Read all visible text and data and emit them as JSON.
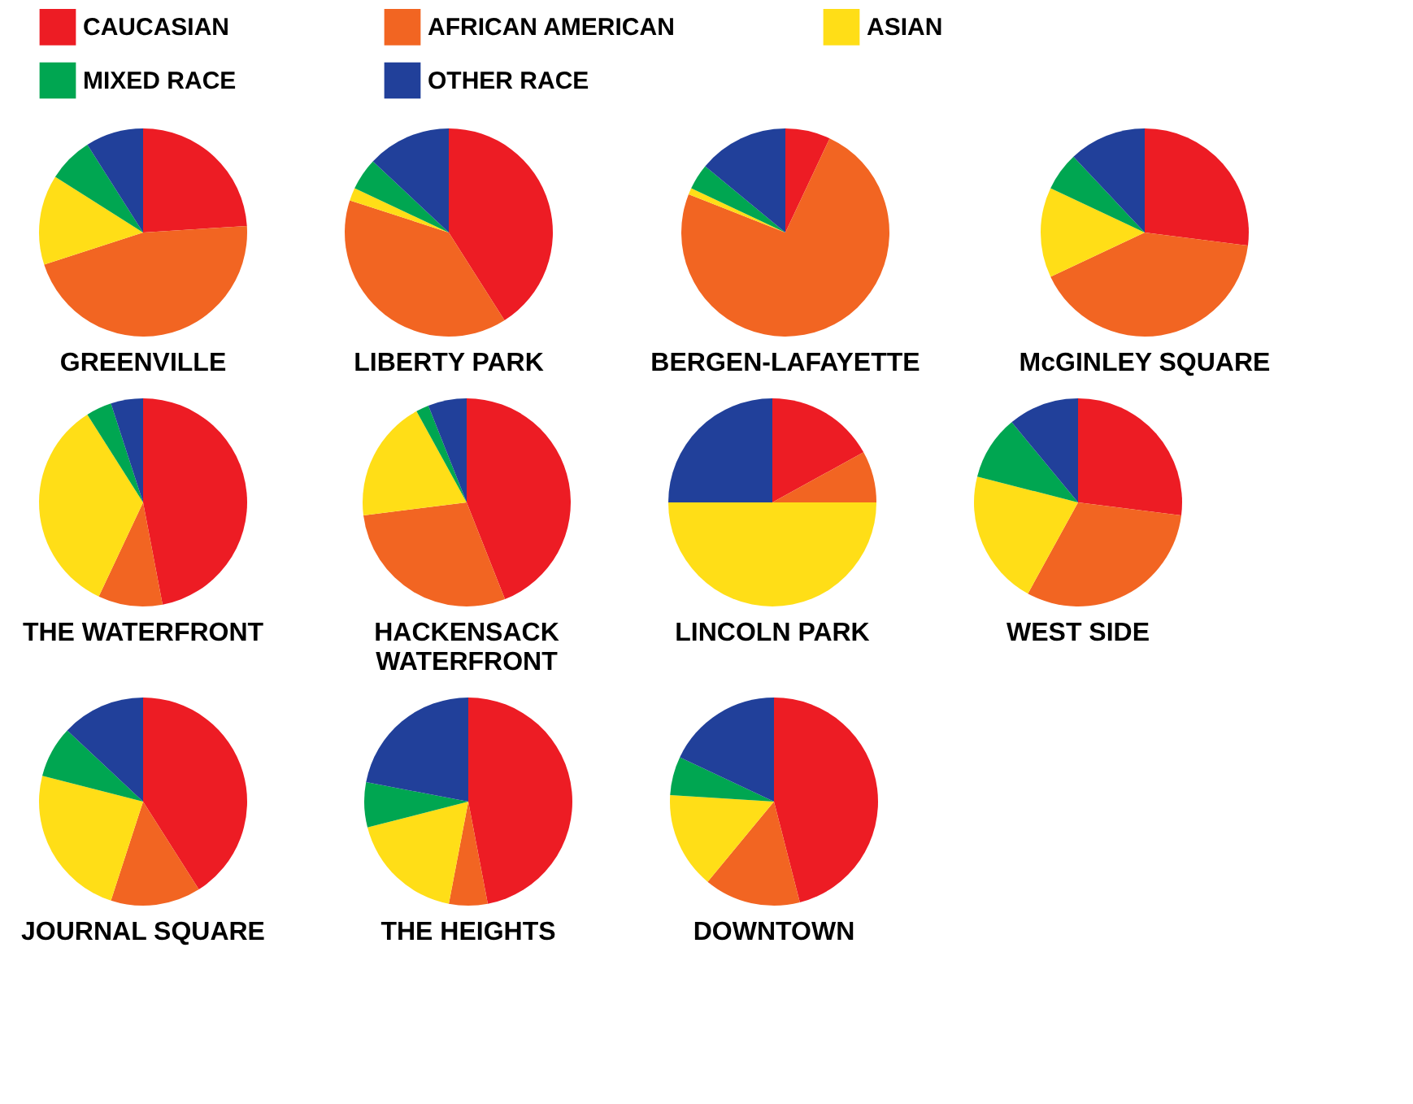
{
  "chart_data": [
    {
      "type": "pie",
      "title": "GREENVILLE",
      "legend": "top",
      "categories": [
        "CAUCASIAN",
        "AFRICAN AMERICAN",
        "ASIAN",
        "MIXED RACE",
        "OTHER RACE"
      ],
      "colors": [
        "#ed1c24",
        "#f26522",
        "#ffde17",
        "#00a651",
        "#21409a"
      ],
      "values": [
        24,
        46,
        14,
        7,
        9
      ]
    },
    {
      "type": "pie",
      "title": "LIBERTY PARK",
      "categories": [
        null,
        null,
        null,
        null,
        null
      ],
      "colors": [
        "#ed1c24",
        "#f26522",
        "#ffde17",
        "#00a651",
        "#21409a"
      ],
      "values": [
        41,
        39,
        2,
        5,
        13
      ]
    },
    {
      "type": "pie",
      "title": "BERGEN-LAFAYETTE",
      "categories": [
        null,
        null,
        null,
        null,
        null
      ],
      "colors": [
        "#ed1c24",
        "#f26522",
        "#ffde17",
        "#00a651",
        "#21409a"
      ],
      "values": [
        7,
        74,
        1,
        4,
        14
      ]
    },
    {
      "type": "pie",
      "title": "McGINLEY SQUARE",
      "categories": [
        null,
        null,
        null,
        null,
        null
      ],
      "colors": [
        "#ed1c24",
        "#f26522",
        "#ffde17",
        "#00a651",
        "#21409a"
      ],
      "values": [
        27,
        41,
        14,
        6,
        12
      ]
    },
    {
      "type": "pie",
      "title": "THE WATERFRONT",
      "categories": [
        null,
        null,
        null,
        null,
        null
      ],
      "colors": [
        "#ed1c24",
        "#f26522",
        "#ffde17",
        "#00a651",
        "#21409a"
      ],
      "values": [
        47,
        10,
        34,
        4,
        5
      ]
    },
    {
      "type": "pie",
      "title": "HACKENSACK WATERFRONT",
      "categories": [
        null,
        null,
        null,
        null,
        null
      ],
      "colors": [
        "#ed1c24",
        "#f26522",
        "#ffde17",
        "#00a651",
        "#21409a"
      ],
      "values": [
        44,
        29,
        19,
        2,
        6
      ]
    },
    {
      "type": "pie",
      "title": "LINCOLN PARK",
      "categories": [
        null,
        null,
        null,
        null,
        null
      ],
      "colors": [
        "#ed1c24",
        "#f26522",
        "#ffde17",
        "#00a651",
        "#21409a"
      ],
      "values": [
        17,
        8,
        50,
        0,
        25
      ]
    },
    {
      "type": "pie",
      "title": "WEST SIDE",
      "categories": [
        null,
        null,
        null,
        null,
        null
      ],
      "colors": [
        "#ed1c24",
        "#f26522",
        "#ffde17",
        "#00a651",
        "#21409a"
      ],
      "values": [
        27,
        31,
        21,
        10,
        11
      ]
    },
    {
      "type": "pie",
      "title": "JOURNAL SQUARE",
      "categories": [
        null,
        null,
        null,
        null,
        null
      ],
      "colors": [
        "#ed1c24",
        "#f26522",
        "#ffde17",
        "#00a651",
        "#21409a"
      ],
      "values": [
        41,
        14,
        24,
        8,
        13
      ]
    },
    {
      "type": "pie",
      "title": "THE HEIGHTS",
      "categories": [
        null,
        null,
        null,
        null,
        null
      ],
      "colors": [
        "#ed1c24",
        "#f26522",
        "#ffde17",
        "#00a651",
        "#21409a"
      ],
      "values": [
        47,
        6,
        18,
        7,
        22
      ]
    },
    {
      "type": "pie",
      "title": "DOWNTOWN",
      "categories": [
        null,
        null,
        null,
        null,
        null
      ],
      "colors": [
        "#ed1c24",
        "#f26522",
        "#ffde17",
        "#00a651",
        "#21409a"
      ],
      "values": [
        46,
        15,
        15,
        6,
        18
      ]
    }
  ]
}
